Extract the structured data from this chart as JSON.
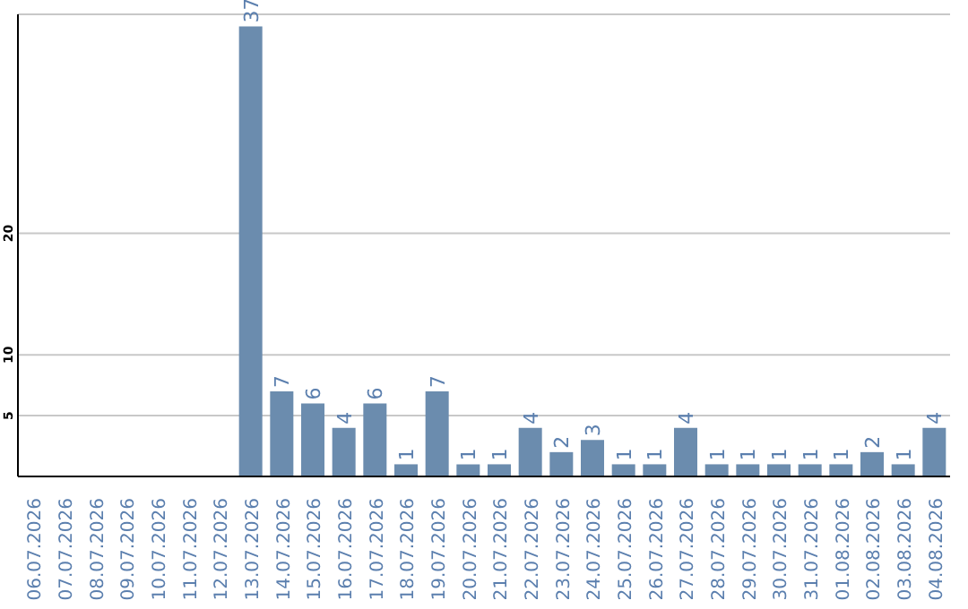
{
  "chart_data": {
    "type": "bar",
    "categories": [
      "06.07.2026",
      "07.07.2026",
      "08.07.2026",
      "09.07.2026",
      "10.07.2026",
      "11.07.2026",
      "12.07.2026",
      "13.07.2026",
      "14.07.2026",
      "15.07.2026",
      "16.07.2026",
      "17.07.2026",
      "18.07.2026",
      "19.07.2026",
      "20.07.2026",
      "21.07.2026",
      "22.07.2026",
      "23.07.2026",
      "24.07.2026",
      "25.07.2026",
      "26.07.2026",
      "27.07.2026",
      "28.07.2026",
      "29.07.2026",
      "30.07.2026",
      "31.07.2026",
      "01.08.2026",
      "02.08.2026",
      "03.08.2026",
      "04.08.2026"
    ],
    "values": [
      0,
      0,
      0,
      0,
      0,
      0,
      0,
      37,
      7,
      6,
      4,
      6,
      1,
      7,
      1,
      1,
      4,
      2,
      3,
      1,
      1,
      4,
      1,
      1,
      1,
      1,
      1,
      2,
      1,
      4
    ],
    "value_labels": [
      null,
      null,
      null,
      null,
      null,
      null,
      null,
      "37",
      "7",
      "6",
      "4",
      "6",
      "1",
      "7",
      "1",
      "1",
      "4",
      "2",
      "3",
      "1",
      "1",
      "4",
      "1",
      "1",
      "1",
      "1",
      "1",
      "2",
      "1",
      "4"
    ],
    "color": "#6b8cae",
    "ylim": [
      0,
      38
    ],
    "yticks": [
      5,
      10,
      20
    ],
    "grid": "y"
  }
}
